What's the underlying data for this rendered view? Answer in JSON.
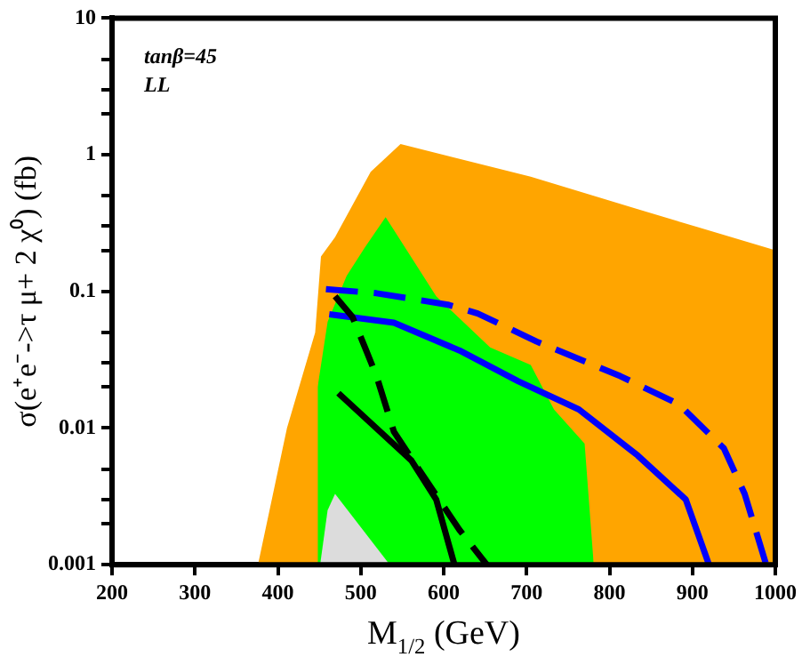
{
  "chart_data": {
    "type": "area",
    "xlabel": "M$_{1/2}$ (GeV)",
    "ylabel": "σ(e⁺e⁻->τ μ+ 2 χ⁰) (fb)",
    "annotations": [
      "tanβ=45",
      "LL"
    ],
    "log": "y",
    "grid": false,
    "legend": false,
    "marker": "none",
    "xlim": [
      200,
      1000
    ],
    "xticks": [
      200,
      300,
      400,
      500,
      600,
      700,
      800,
      900,
      1000
    ],
    "ylim": [
      0.001,
      10
    ],
    "yticks": [
      {
        "value": 0.001,
        "label": "0.001"
      },
      {
        "value": 0.002,
        "label": null
      },
      {
        "value": 0.003,
        "label": null
      },
      {
        "value": 0.005,
        "label": null
      },
      {
        "value": 0.01,
        "label": "0.01"
      },
      {
        "value": 0.02,
        "label": null
      },
      {
        "value": 0.03,
        "label": null
      },
      {
        "value": 0.05,
        "label": null
      },
      {
        "value": 0.1,
        "label": "0.1"
      },
      {
        "value": 0.2,
        "label": null
      },
      {
        "value": 0.3,
        "label": null
      },
      {
        "value": 0.5,
        "label": null
      },
      {
        "value": 1,
        "label": "1"
      },
      {
        "value": 2,
        "label": null
      },
      {
        "value": 3,
        "label": null
      },
      {
        "value": 5,
        "label": null
      },
      {
        "value": 10,
        "label": "10"
      }
    ],
    "series": [
      {
        "color": "#ffa500",
        "x": [
          376,
          411,
          445,
          452,
          469,
          512,
          548,
          705,
          834,
          1000
        ],
        "values": [
          0.001,
          0.01,
          0.05,
          0.18,
          0.25,
          0.75,
          1.2,
          0.69,
          0.4,
          0.2
        ]
      },
      {
        "color": "#00ff00",
        "x": [
          448,
          448,
          460,
          483,
          505,
          530,
          591,
          656,
          705,
          733,
          770,
          781
        ],
        "values": [
          0.001,
          0.02,
          0.06,
          0.13,
          0.21,
          0.35,
          0.092,
          0.039,
          0.029,
          0.0137,
          0.0077,
          0.001
        ]
      },
      {
        "color": "#dcdcdc",
        "x": [
          451,
          460,
          469,
          535
        ],
        "values": [
          0.001,
          0.0025,
          0.0033,
          0.001
        ]
      },
      {
        "type": "line",
        "color": "#0000ff",
        "line_style": "dashed",
        "x": [
          458,
          519,
          605,
          641,
          712,
          813,
          884,
          938,
          963,
          989
        ],
        "values": [
          0.104,
          0.097,
          0.08,
          0.069,
          0.043,
          0.024,
          0.0149,
          0.0071,
          0.0033,
          0.001
        ]
      },
      {
        "type": "line",
        "color": "#0000ff",
        "line_style": "solid",
        "x": [
          462,
          540,
          619,
          690,
          763,
          834,
          892,
          920
        ],
        "values": [
          0.068,
          0.059,
          0.037,
          0.022,
          0.0137,
          0.0063,
          0.003,
          0.001
        ]
      },
      {
        "type": "line",
        "color": "#000000",
        "line_style": "dashed",
        "x": [
          469,
          490,
          505,
          519,
          540,
          576,
          619,
          652
        ],
        "values": [
          0.092,
          0.065,
          0.039,
          0.024,
          0.0094,
          0.0044,
          0.0018,
          0.001
        ]
      },
      {
        "type": "line",
        "color": "#000000",
        "line_style": "solid",
        "x": [
          473,
          561,
          591,
          613
        ],
        "values": [
          0.018,
          0.0058,
          0.003,
          0.001
        ]
      }
    ]
  }
}
